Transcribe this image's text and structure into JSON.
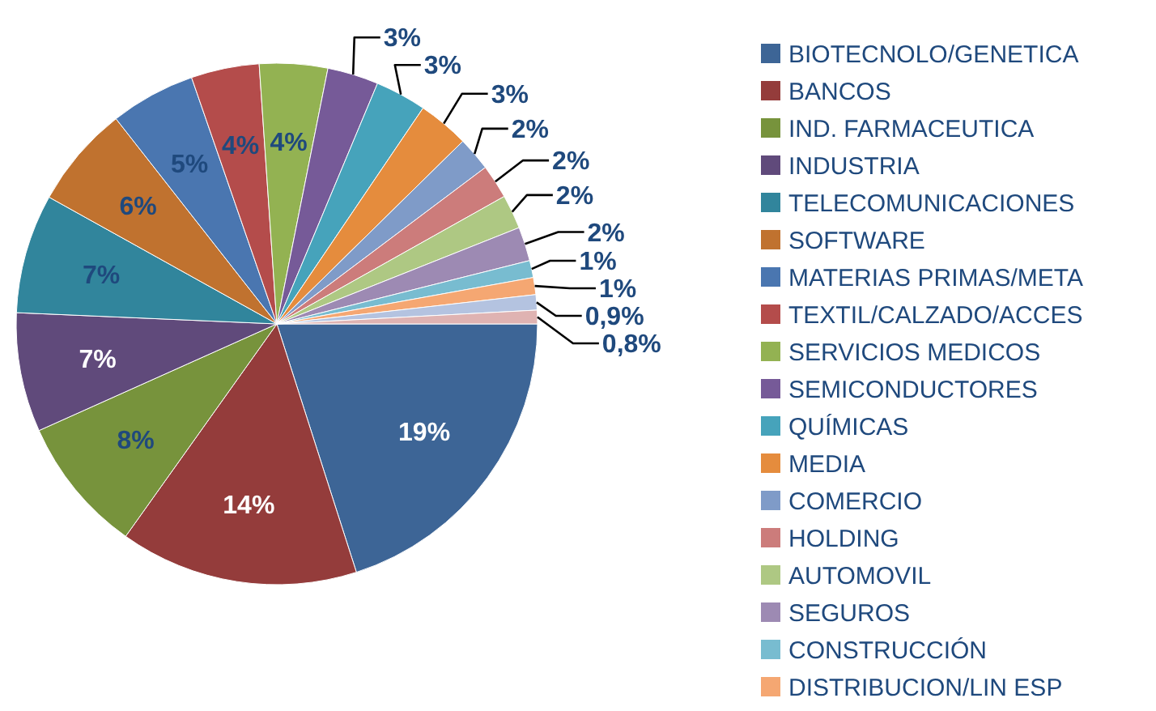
{
  "chart_data": {
    "type": "pie",
    "categories": [
      "BIOTECNOLO/GENETICA",
      "BANCOS",
      "IND. FARMACEUTICA",
      "INDUSTRIA",
      "TELECOMUNICACIONES",
      "SOFTWARE",
      "MATERIAS PRIMAS/META",
      "TEXTIL/CALZADO/ACCES",
      "SERVICIOS MEDICOS",
      "SEMICONDUCTORES",
      "QUÍMICAS",
      "MEDIA",
      "COMERCIO",
      "HOLDING",
      "AUTOMOVIL",
      "SEGUROS",
      "CONSTRUCCIÓN",
      "DISTRIBUCION/LIN ESP",
      null,
      null
    ],
    "values": [
      19,
      14,
      8,
      7,
      7,
      6,
      5,
      4,
      4,
      3,
      3,
      3,
      2,
      2,
      2,
      2,
      1,
      1,
      0.9,
      0.8
    ],
    "colors": [
      "#3d6596",
      "#943c3b",
      "#77933c",
      "#604a7b",
      "#31859c",
      "#c0722f",
      "#4a76b0",
      "#b44c4b",
      "#93b252",
      "#765a98",
      "#46a3bb",
      "#e58c3d",
      "#7f9bc8",
      "#cc7c7b",
      "#aec883",
      "#9d8ab3",
      "#78bcd0",
      "#f5a772",
      "#b4c3e0",
      "#dfb3b2"
    ],
    "value_labels": [
      "19%",
      "14%",
      "8%",
      "7%",
      "7%",
      "6%",
      "5%",
      "4%",
      "4%",
      "3%",
      "3%",
      "3%",
      "2%",
      "2%",
      "2%",
      "2%",
      "1%",
      "1%",
      "0,9%",
      "0,8%"
    ],
    "legend": "right"
  }
}
